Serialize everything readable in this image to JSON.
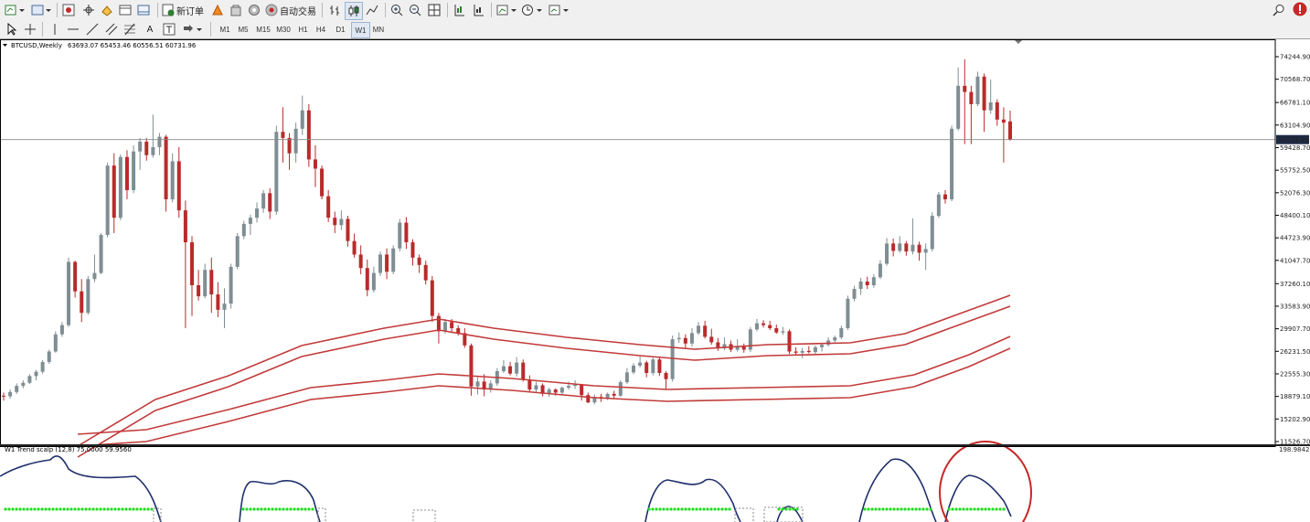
{
  "toolbar": {
    "new_order_label": "新订单",
    "auto_trading_label": "自动交易"
  },
  "timeframes": [
    "M1",
    "M5",
    "M15",
    "M30",
    "H1",
    "H4",
    "D1",
    "W1",
    "MN"
  ],
  "active_timeframe": "W1",
  "chart": {
    "symbol": "BTCUSD,Weekly",
    "ohlc": "63693.07 65453.46 60556.51 60731.96",
    "current_price": "60731.96"
  },
  "indicator": {
    "label": "W1 Trend scalp (12,8) 75.0000 59.9560",
    "top_value": "198.9842"
  },
  "colors": {
    "bull": "#7f8e93",
    "bear": "#b92b2b",
    "ema": "#c23a3a",
    "osc": "#1f2f6b",
    "signal": "#22dd22",
    "highlight": "#c62828"
  },
  "icons": [
    "new-chart-icon",
    "profiles-icon",
    "properties-icon",
    "crosshair-icon",
    "data-window-icon",
    "navigator-icon",
    "terminal-icon",
    "new-order-icon",
    "metaeditor-icon",
    "market-icon",
    "signals-icon",
    "autotrading-icon",
    "bar-chart-icon",
    "candlestick-icon",
    "line-chart-icon",
    "zoom-in-icon",
    "zoom-out-icon",
    "tile-icon",
    "autoscroll-icon",
    "chart-shift-icon",
    "indicators-icon",
    "periods-icon",
    "templates-icon",
    "search-icon",
    "alert-icon"
  ],
  "chart_data": {
    "type": "candlestick",
    "y_ticks": [
      "74244.90",
      "70568.70",
      "66781.10",
      "63104.90",
      "59428.70",
      "55752.50",
      "52076.30",
      "48400.10",
      "44723.90",
      "41047.70",
      "37260.10",
      "33583.90",
      "29907.70",
      "26231.50",
      "22555.30",
      "18879.10",
      "15202.90",
      "11526.70"
    ],
    "ylim": [
      11526.7,
      76000
    ],
    "candles": [
      [
        19000,
        19500,
        18200,
        18900
      ],
      [
        18900,
        20000,
        18500,
        19600
      ],
      [
        19600,
        21000,
        19300,
        20600
      ],
      [
        20600,
        21500,
        20200,
        21100
      ],
      [
        21100,
        22500,
        20900,
        22200
      ],
      [
        22200,
        23200,
        21500,
        22900
      ],
      [
        22900,
        24800,
        22600,
        24500
      ],
      [
        24500,
        26500,
        24200,
        26200
      ],
      [
        26200,
        29500,
        26000,
        29000
      ],
      [
        29000,
        31000,
        28600,
        30500
      ],
      [
        30500,
        41500,
        30200,
        40800
      ],
      [
        40800,
        41000,
        35000,
        36000
      ],
      [
        36000,
        38000,
        31000,
        32500
      ],
      [
        32500,
        38500,
        32200,
        38000
      ],
      [
        38000,
        42000,
        37500,
        39000
      ],
      [
        39000,
        45500,
        38800,
        45200
      ],
      [
        45200,
        57000,
        44800,
        56500
      ],
      [
        56500,
        58500,
        45500,
        48000
      ],
      [
        48000,
        58300,
        47600,
        57900
      ],
      [
        57900,
        59000,
        51000,
        52500
      ],
      [
        52500,
        59800,
        52000,
        58800
      ],
      [
        58800,
        61000,
        55800,
        60400
      ],
      [
        60400,
        61000,
        57300,
        58200
      ],
      [
        58200,
        64800,
        57800,
        59500
      ],
      [
        59500,
        61800,
        58200,
        61200
      ],
      [
        61200,
        61500,
        49000,
        51000
      ],
      [
        51000,
        58500,
        50500,
        57200
      ],
      [
        57200,
        59500,
        48000,
        49200
      ],
      [
        49200,
        50800,
        30000,
        44000
      ],
      [
        44000,
        45000,
        32000,
        37000
      ],
      [
        37000,
        39500,
        34500,
        35200
      ],
      [
        35200,
        40500,
        34900,
        39500
      ],
      [
        39500,
        41500,
        32500,
        35500
      ],
      [
        35500,
        37500,
        31800,
        33000
      ],
      [
        33000,
        36500,
        30000,
        34000
      ],
      [
        34000,
        40500,
        33200,
        40000
      ],
      [
        40000,
        45500,
        39600,
        45000
      ],
      [
        45000,
        47500,
        44500,
        47000
      ],
      [
        47000,
        48500,
        45200,
        48000
      ],
      [
        48000,
        50500,
        47200,
        49500
      ],
      [
        49500,
        52500,
        48800,
        52000
      ],
      [
        52000,
        52800,
        47800,
        49000
      ],
      [
        49000,
        63000,
        48500,
        62000
      ],
      [
        62000,
        66000,
        57000,
        61000
      ],
      [
        61000,
        61800,
        55800,
        58500
      ],
      [
        58500,
        63500,
        57000,
        62500
      ],
      [
        62500,
        67900,
        61500,
        65500
      ],
      [
        65500,
        66500,
        56300,
        57500
      ],
      [
        57500,
        59800,
        53000,
        56000
      ],
      [
        56000,
        56500,
        51000,
        51500
      ],
      [
        51500,
        52500,
        47300,
        48000
      ],
      [
        48000,
        49000,
        45500,
        46800
      ],
      [
        46800,
        49200,
        46000,
        47800
      ],
      [
        47800,
        48300,
        43300,
        44200
      ],
      [
        44200,
        45400,
        41500,
        42000
      ],
      [
        42000,
        43500,
        38800,
        39800
      ],
      [
        39800,
        41200,
        35200,
        36200
      ],
      [
        36200,
        40000,
        35800,
        39000
      ],
      [
        39000,
        42500,
        38500,
        42000
      ],
      [
        42000,
        43000,
        38000,
        39200
      ],
      [
        39200,
        43500,
        38800,
        43000
      ],
      [
        43000,
        47800,
        42500,
        47200
      ],
      [
        47200,
        48100,
        42900,
        44000
      ],
      [
        44000,
        44500,
        40200,
        41500
      ],
      [
        41500,
        42000,
        39000,
        40300
      ],
      [
        40300,
        41000,
        37100,
        37800
      ],
      [
        37800,
        38500,
        31000,
        32000
      ],
      [
        32000,
        32500,
        27500,
        29500
      ],
      [
        29500,
        31500,
        29100,
        31000
      ],
      [
        31000,
        31500,
        29200,
        30000
      ],
      [
        30000,
        30500,
        28800,
        29200
      ],
      [
        29200,
        30000,
        26800,
        27200
      ],
      [
        27200,
        27500,
        19000,
        20500
      ],
      [
        20500,
        22000,
        19200,
        21300
      ],
      [
        21300,
        22500,
        18900,
        20000
      ],
      [
        20000,
        21500,
        19500,
        21000
      ],
      [
        21000,
        23500,
        20600,
        23000
      ],
      [
        23000,
        24800,
        22700,
        23800
      ],
      [
        23800,
        24500,
        22300,
        22600
      ],
      [
        22600,
        25300,
        22100,
        24400
      ],
      [
        24400,
        24900,
        21300,
        21600
      ],
      [
        21600,
        22300,
        19700,
        20000
      ],
      [
        20000,
        21300,
        19500,
        20700
      ],
      [
        20700,
        21000,
        18900,
        19300
      ],
      [
        19300,
        20300,
        18800,
        20000
      ],
      [
        20000,
        20200,
        19000,
        19500
      ],
      [
        19500,
        20500,
        19200,
        20300
      ],
      [
        20300,
        21300,
        20000,
        20600
      ],
      [
        20600,
        21500,
        20100,
        20800
      ],
      [
        20800,
        20900,
        18200,
        19100
      ],
      [
        19100,
        19500,
        17800,
        17900
      ],
      [
        17900,
        19200,
        17600,
        18800
      ],
      [
        18800,
        19300,
        18000,
        18600
      ],
      [
        18600,
        19500,
        18300,
        19300
      ],
      [
        19300,
        19800,
        18600,
        19000
      ],
      [
        19000,
        21500,
        18800,
        21200
      ],
      [
        21200,
        23500,
        20900,
        22800
      ],
      [
        22800,
        24300,
        22500,
        23900
      ],
      [
        23900,
        25400,
        23600,
        24400
      ],
      [
        24400,
        24700,
        22000,
        22700
      ],
      [
        22700,
        25200,
        22300,
        24900
      ],
      [
        24900,
        25300,
        22200,
        22700
      ],
      [
        22700,
        23000,
        20000,
        21700
      ],
      [
        21700,
        28800,
        21300,
        28200
      ],
      [
        28200,
        29300,
        27600,
        28400
      ],
      [
        28400,
        29000,
        26800,
        27500
      ],
      [
        27500,
        30000,
        27000,
        29200
      ],
      [
        29200,
        31000,
        28900,
        30400
      ],
      [
        30400,
        31200,
        28300,
        28600
      ],
      [
        28600,
        29900,
        27300,
        27700
      ],
      [
        27700,
        28400,
        26300,
        26700
      ],
      [
        26700,
        28500,
        26400,
        27400
      ],
      [
        27400,
        28000,
        26100,
        26500
      ],
      [
        26500,
        28200,
        26200,
        27000
      ],
      [
        27000,
        27500,
        26000,
        26500
      ],
      [
        26500,
        30200,
        26100,
        29800
      ],
      [
        29800,
        31500,
        29500,
        30800
      ],
      [
        30800,
        31300,
        30100,
        30500
      ],
      [
        30500,
        31200,
        29700,
        30000
      ],
      [
        30000,
        30600,
        29100,
        29300
      ],
      [
        29300,
        30200,
        28900,
        29500
      ],
      [
        29500,
        29800,
        25800,
        26200
      ],
      [
        26200,
        26900,
        25600,
        26000
      ],
      [
        26000,
        26800,
        25100,
        26300
      ],
      [
        26300,
        27100,
        25900,
        26100
      ],
      [
        26100,
        27200,
        25700,
        26900
      ],
      [
        26900,
        27600,
        26200,
        27300
      ],
      [
        27300,
        28500,
        27000,
        28000
      ],
      [
        28000,
        28800,
        27700,
        28500
      ],
      [
        28500,
        30400,
        28200,
        30000
      ],
      [
        30000,
        35300,
        29700,
        34800
      ],
      [
        34800,
        36900,
        34400,
        36400
      ],
      [
        36400,
        38200,
        35400,
        37600
      ],
      [
        37600,
        38400,
        36400,
        37000
      ],
      [
        37000,
        38800,
        36600,
        38300
      ],
      [
        38300,
        41100,
        38000,
        40500
      ],
      [
        40500,
        44700,
        40200,
        43800
      ],
      [
        43800,
        44600,
        41700,
        42600
      ],
      [
        42600,
        45000,
        42300,
        43800
      ],
      [
        43800,
        44200,
        41800,
        42500
      ],
      [
        42500,
        47900,
        42000,
        43600
      ],
      [
        43600,
        44100,
        41000,
        42300
      ],
      [
        42300,
        43800,
        39500,
        42900
      ],
      [
        42900,
        48900,
        42500,
        48300
      ],
      [
        48300,
        52200,
        48000,
        51800
      ],
      [
        51800,
        52500,
        50300,
        51000
      ],
      [
        51000,
        63000,
        50700,
        62500
      ],
      [
        62500,
        72500,
        62200,
        69500
      ],
      [
        69500,
        73800,
        60000,
        68500
      ],
      [
        68500,
        69500,
        60000,
        66500
      ],
      [
        66500,
        71800,
        66200,
        71000
      ],
      [
        71000,
        71500,
        62000,
        65500
      ],
      [
        65500,
        70500,
        64900,
        66800
      ],
      [
        66800,
        67300,
        63000,
        64000
      ],
      [
        64000,
        66000,
        57000,
        63500
      ],
      [
        63693.07,
        65453.46,
        60556.51,
        60731.96
      ]
    ]
  }
}
